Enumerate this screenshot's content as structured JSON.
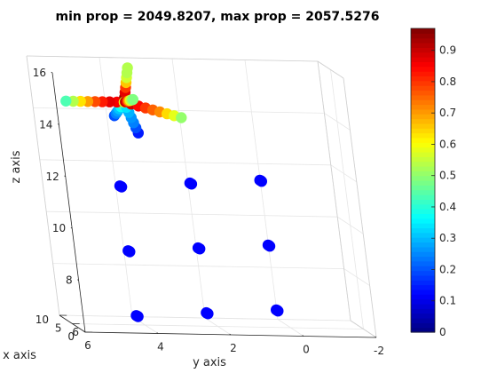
{
  "chart_data": {
    "type": "scatter",
    "title": "min prop = 2049.8207, max prop = 2057.5276",
    "xlabel": "x axis",
    "ylabel": "y axis",
    "zlabel": "z axis",
    "xlim": [
      0,
      10
    ],
    "ylim": [
      -2,
      6
    ],
    "zlim": [
      6,
      16
    ],
    "x_ticks": [
      "0",
      "5",
      "10"
    ],
    "y_ticks": [
      "6",
      "4",
      "2",
      "0",
      "-2"
    ],
    "z_ticks": [
      "6",
      "8",
      "10",
      "12",
      "14",
      "16"
    ],
    "grid": true,
    "colormap": "jet",
    "colorbar": {
      "range": [
        0,
        0.97
      ],
      "ticks": [
        "0",
        "0.1",
        "0.2",
        "0.3",
        "0.4",
        "0.5",
        "0.6",
        "0.7",
        "0.8",
        "0.9"
      ],
      "tick_values": [
        0,
        0.1,
        0.2,
        0.3,
        0.4,
        0.5,
        0.6,
        0.7,
        0.8,
        0.9
      ]
    },
    "fixed_points": {
      "color": "#0000ff",
      "value": 0,
      "y": [
        4.4,
        2.3,
        0.2
      ],
      "z": [
        6.5,
        9.0,
        11.5
      ],
      "x_per_column": [
        2.5,
        5,
        7.5
      ]
    },
    "swarm": {
      "center": {
        "x": 5,
        "y": 3.8,
        "z": 14.6
      },
      "arms": [
        {
          "direction": "+y",
          "values": [
            0.88,
            0.9,
            0.85,
            0.8,
            0.72,
            0.65,
            0.55,
            0.45
          ]
        },
        {
          "direction": "-y",
          "values": [
            0.92,
            0.87,
            0.82,
            0.78,
            0.74,
            0.66,
            0.6,
            0.52
          ]
        },
        {
          "direction": "+x",
          "values": [
            0.95,
            0.9,
            0.8,
            0.7,
            0.6,
            0.55,
            0.5
          ]
        },
        {
          "direction": "-x",
          "values": [
            0.45,
            0.38,
            0.32,
            0.28,
            0.25,
            0.2
          ]
        },
        {
          "direction": "+z",
          "values": [
            0.97,
            0.9,
            0.82,
            0.68,
            0.58,
            0.55,
            0.55
          ]
        },
        {
          "direction": "-z",
          "values": [
            0.35,
            0.3,
            0.27,
            0.25,
            0.2,
            0.15
          ]
        }
      ]
    }
  }
}
